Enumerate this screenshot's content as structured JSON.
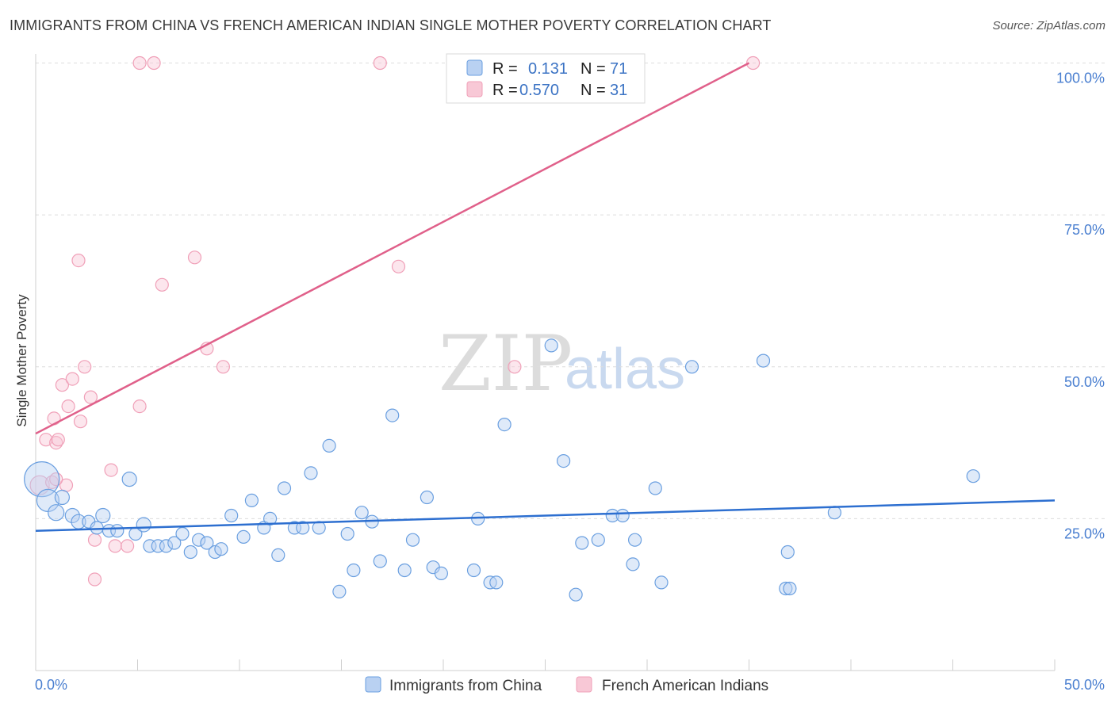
{
  "header": {
    "title": "IMMIGRANTS FROM CHINA VS FRENCH AMERICAN INDIAN SINGLE MOTHER POVERTY CORRELATION CHART",
    "source": "Source: ZipAtlas.com"
  },
  "watermark": {
    "zip": "ZIP",
    "atlas": "atlas"
  },
  "legend": {
    "rows": [
      {
        "r_label": "R =",
        "r_value": "0.131",
        "n_label": "N =",
        "n_value": "71"
      },
      {
        "r_label": "R =",
        "r_value": "0.570",
        "n_label": "N =",
        "n_value": "31"
      }
    ]
  },
  "bottom_legend": {
    "china": "Immigrants from China",
    "french": "French American Indians"
  },
  "chart_data": {
    "type": "scatter",
    "title": "IMMIGRANTS FROM CHINA VS FRENCH AMERICAN INDIAN SINGLE MOTHER POVERTY CORRELATION CHART",
    "xlabel": "",
    "ylabel": "Single Mother Poverty",
    "xlim": [
      0,
      50
    ],
    "ylim": [
      0,
      102
    ],
    "x_tick_labels": [
      "0.0%",
      "50.0%"
    ],
    "y_tick_labels": [
      "25.0%",
      "50.0%",
      "75.0%",
      "100.0%"
    ],
    "y_ticks": [
      25,
      50,
      75,
      100
    ],
    "grid": "horizontal dashed",
    "legend_position": "top-center",
    "colors": {
      "china": "#6a9fe0",
      "china_line": "#2d6fd0",
      "french": "#f0a0b8",
      "french_line": "#e0608a"
    },
    "series": [
      {
        "name": "Immigrants from China",
        "r": 0.131,
        "n": 71,
        "trend": [
          [
            0,
            23.0
          ],
          [
            50,
            28.0
          ]
        ],
        "points": [
          [
            0.3,
            31.5,
            22
          ],
          [
            0.6,
            28,
            14
          ],
          [
            1.0,
            26,
            10
          ],
          [
            1.3,
            28.5,
            9
          ],
          [
            1.8,
            25.5,
            9
          ],
          [
            2.1,
            24.5,
            9
          ],
          [
            2.6,
            24.5,
            8
          ],
          [
            3.0,
            23.5,
            8
          ],
          [
            3.3,
            25.5,
            9
          ],
          [
            3.6,
            23,
            8
          ],
          [
            4.0,
            23,
            8
          ],
          [
            4.6,
            31.5,
            9
          ],
          [
            4.9,
            22.5,
            8
          ],
          [
            5.3,
            24,
            9
          ],
          [
            5.6,
            20.5,
            8
          ],
          [
            6.0,
            20.5,
            8
          ],
          [
            6.4,
            20.5,
            8
          ],
          [
            6.8,
            21,
            8
          ],
          [
            7.2,
            22.5,
            8
          ],
          [
            7.6,
            19.5,
            8
          ],
          [
            8.0,
            21.5,
            8
          ],
          [
            8.4,
            21,
            8
          ],
          [
            8.8,
            19.5,
            8
          ],
          [
            9.1,
            20,
            8
          ],
          [
            9.6,
            25.5,
            8
          ],
          [
            10.2,
            22,
            8
          ],
          [
            10.6,
            28,
            8
          ],
          [
            11.2,
            23.5,
            8
          ],
          [
            11.5,
            25,
            8
          ],
          [
            11.9,
            19,
            8
          ],
          [
            12.2,
            30,
            8
          ],
          [
            12.7,
            23.5,
            8
          ],
          [
            13.1,
            23.5,
            8
          ],
          [
            13.5,
            32.5,
            8
          ],
          [
            13.9,
            23.5,
            8
          ],
          [
            14.4,
            37,
            8
          ],
          [
            14.9,
            13,
            8
          ],
          [
            15.3,
            22.5,
            8
          ],
          [
            15.6,
            16.5,
            8
          ],
          [
            16.0,
            26,
            8
          ],
          [
            16.5,
            24.5,
            8
          ],
          [
            16.9,
            18,
            8
          ],
          [
            17.5,
            42,
            8
          ],
          [
            18.1,
            16.5,
            8
          ],
          [
            18.5,
            21.5,
            8
          ],
          [
            19.2,
            28.5,
            8
          ],
          [
            19.5,
            17,
            8
          ],
          [
            19.9,
            16,
            8
          ],
          [
            21.5,
            16.5,
            8
          ],
          [
            21.7,
            25,
            8
          ],
          [
            22.3,
            14.5,
            8
          ],
          [
            22.6,
            14.5,
            8
          ],
          [
            23.0,
            40.5,
            8
          ],
          [
            25.3,
            53.5,
            8
          ],
          [
            25.9,
            34.5,
            8
          ],
          [
            26.5,
            12.5,
            8
          ],
          [
            26.8,
            21,
            8
          ],
          [
            27.6,
            21.5,
            8
          ],
          [
            28.3,
            25.5,
            8
          ],
          [
            28.8,
            25.5,
            8
          ],
          [
            29.3,
            17.5,
            8
          ],
          [
            29.4,
            21.5,
            8
          ],
          [
            30.4,
            30,
            8
          ],
          [
            30.7,
            14.5,
            8
          ],
          [
            32.2,
            50,
            8
          ],
          [
            35.7,
            51,
            8
          ],
          [
            36.8,
            13.5,
            8
          ],
          [
            36.9,
            19.5,
            8
          ],
          [
            37.0,
            13.5,
            8
          ],
          [
            39.2,
            26,
            8
          ],
          [
            46.0,
            32,
            8
          ]
        ]
      },
      {
        "name": "French American Indians",
        "r": 0.57,
        "n": 31,
        "trend": [
          [
            0,
            39.0
          ],
          [
            35,
            100.0
          ]
        ],
        "points": [
          [
            0.2,
            30.5,
            12
          ],
          [
            0.5,
            38,
            8
          ],
          [
            0.8,
            31,
            8
          ],
          [
            0.9,
            41.5,
            8
          ],
          [
            1.0,
            37.5,
            8
          ],
          [
            1.1,
            38,
            8
          ],
          [
            1.3,
            47,
            8
          ],
          [
            1.5,
            30.5,
            8
          ],
          [
            1.6,
            43.5,
            8
          ],
          [
            1.8,
            48,
            8
          ],
          [
            2.1,
            67.5,
            8
          ],
          [
            2.2,
            41,
            8
          ],
          [
            2.4,
            50,
            8
          ],
          [
            2.7,
            45,
            8
          ],
          [
            2.9,
            15,
            8
          ],
          [
            2.9,
            21.5,
            8
          ],
          [
            3.7,
            33,
            8
          ],
          [
            3.9,
            20.5,
            8
          ],
          [
            4.5,
            20.5,
            8
          ],
          [
            5.1,
            43.5,
            8
          ],
          [
            5.1,
            100,
            8
          ],
          [
            5.8,
            100,
            8
          ],
          [
            6.2,
            63.5,
            8
          ],
          [
            7.8,
            68,
            8
          ],
          [
            8.4,
            53,
            8
          ],
          [
            9.2,
            50,
            8
          ],
          [
            16.9,
            100,
            8
          ],
          [
            17.8,
            66.5,
            8
          ],
          [
            23.5,
            50,
            8
          ],
          [
            35.2,
            100,
            8
          ],
          [
            1.0,
            31.5,
            8
          ]
        ]
      }
    ]
  }
}
